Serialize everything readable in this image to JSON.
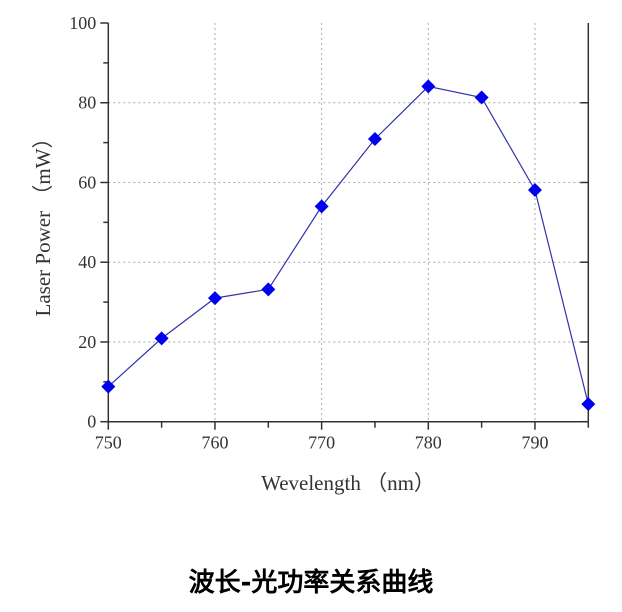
{
  "chart_data": {
    "type": "line",
    "xlabel": "Wevelength （nm）",
    "ylabel": "Laser Power （mW）",
    "xlim": [
      750,
      795
    ],
    "ylim": [
      0,
      100
    ],
    "xticks": [
      750,
      760,
      770,
      780,
      790
    ],
    "yticks": [
      0,
      20,
      40,
      60,
      80,
      100
    ],
    "grid": true,
    "marker": "diamond",
    "color": "#0000ee",
    "x": [
      750,
      755,
      760,
      765,
      770,
      775,
      780,
      785,
      790,
      795
    ],
    "series": [
      {
        "values": [
          8.8,
          20.9,
          31.0,
          33.2,
          54.0,
          70.9,
          84.1,
          81.3,
          58.1,
          4.4
        ]
      }
    ]
  },
  "caption": "波长-光功率关系曲线"
}
